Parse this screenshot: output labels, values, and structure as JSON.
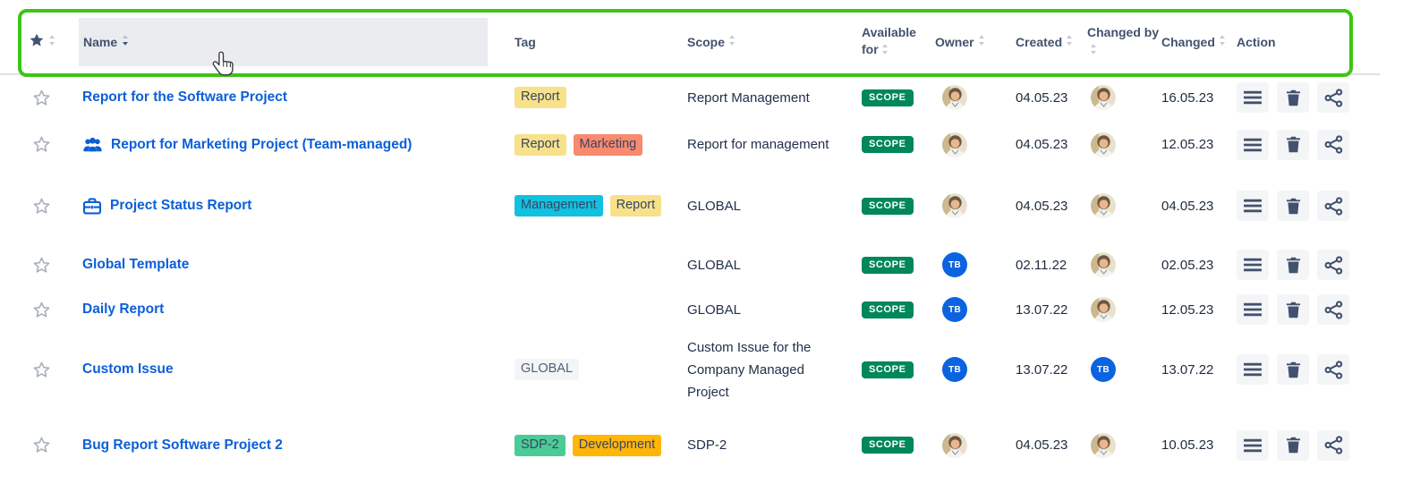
{
  "colors": {
    "annotation_green": "#3EC415",
    "link_blue": "#0B5FD9",
    "header_text": "#42526E",
    "badge_green": "#00875A",
    "tag_text": "#374663",
    "avatar_blue": "#0B63E0",
    "icon_navy": "#42526E",
    "star_outline": "#A9B0BB",
    "hover_bg": "#EBECF0",
    "divider": "#DFE1E6",
    "btn_bg": "#F4F5F7",
    "date_text": "#1E2B3C",
    "scope_text": "#22304A"
  },
  "annotation": {
    "type": "highlight-rectangle-around-header",
    "cursor": "hand-pointer-over-name-column"
  },
  "header": {
    "columns": [
      {
        "key": "favorite",
        "label": "",
        "icon": "star-filled-icon",
        "sortable": true
      },
      {
        "key": "name",
        "label": "Name",
        "sortable": true,
        "active_sort": "down"
      },
      {
        "key": "tag",
        "label": "Tag",
        "sortable": false
      },
      {
        "key": "scope",
        "label": "Scope",
        "sortable": true
      },
      {
        "key": "available_for",
        "label": "Available for",
        "sortable": true
      },
      {
        "key": "owner",
        "label": "Owner",
        "sortable": true
      },
      {
        "key": "created",
        "label": "Created",
        "sortable": true
      },
      {
        "key": "changed_by",
        "label": "Changed by",
        "sortable": true
      },
      {
        "key": "changed",
        "label": "Changed",
        "sortable": true
      },
      {
        "key": "action",
        "label": "Action",
        "sortable": false
      }
    ]
  },
  "actions": [
    {
      "name": "menu-button",
      "icon": "menu-icon",
      "label": "Menu"
    },
    {
      "name": "delete-button",
      "icon": "trash-icon",
      "label": "Delete"
    },
    {
      "name": "share-button",
      "icon": "share-icon",
      "label": "Share"
    }
  ],
  "rows": [
    {
      "name": "Report for the Software Project",
      "icon": null,
      "tags": [
        {
          "label": "Report",
          "bg": "#F7E28B"
        }
      ],
      "scope": "Report Management",
      "available_for": "SCOPE",
      "owner": {
        "type": "photo"
      },
      "created": "04.05.23",
      "changed_by": {
        "type": "photo"
      },
      "changed": "16.05.23"
    },
    {
      "name": "Report for Marketing Project (Team-managed)",
      "icon": "team-icon",
      "tags": [
        {
          "label": "Report",
          "bg": "#F7E28B"
        },
        {
          "label": "Marketing",
          "bg": "#F9896F"
        }
      ],
      "scope": "Report for management",
      "available_for": "SCOPE",
      "owner": {
        "type": "photo"
      },
      "created": "04.05.23",
      "changed_by": {
        "type": "photo"
      },
      "changed": "12.05.23"
    },
    {
      "name": "Project Status Report",
      "icon": "briefcase-icon",
      "tags": [
        {
          "label": "Management",
          "bg": "#12C1E0"
        },
        {
          "label": "Report",
          "bg": "#F7E28B"
        }
      ],
      "scope": "GLOBAL",
      "available_for": "SCOPE",
      "owner": {
        "type": "photo"
      },
      "created": "04.05.23",
      "changed_by": {
        "type": "photo"
      },
      "changed": "04.05.23"
    },
    {
      "name": "Global Template",
      "icon": null,
      "tags": [],
      "scope": "GLOBAL",
      "available_for": "SCOPE",
      "owner": {
        "type": "initials",
        "text": "TB"
      },
      "created": "02.11.22",
      "changed_by": {
        "type": "photo"
      },
      "changed": "02.05.23"
    },
    {
      "name": "Daily Report",
      "icon": null,
      "tags": [],
      "scope": "GLOBAL",
      "available_for": "SCOPE",
      "owner": {
        "type": "initials",
        "text": "TB"
      },
      "created": "13.07.22",
      "changed_by": {
        "type": "photo"
      },
      "changed": "12.05.23"
    },
    {
      "name": "Custom Issue",
      "icon": null,
      "tags": [
        {
          "label": "GLOBAL",
          "bg": "#F4F5F7",
          "color": "#505F79"
        }
      ],
      "scope": "Custom Issue for the Company Managed Project",
      "available_for": "SCOPE",
      "owner": {
        "type": "initials",
        "text": "TB"
      },
      "created": "13.07.22",
      "changed_by": {
        "type": "initials",
        "text": "TB"
      },
      "changed": "13.07.22"
    },
    {
      "name": "Bug Report Software Project 2",
      "icon": null,
      "tags": [
        {
          "label": "SDP-2",
          "bg": "#4CCB97"
        },
        {
          "label": "Development",
          "bg": "#FFB608"
        }
      ],
      "scope": "SDP-2",
      "available_for": "SCOPE",
      "owner": {
        "type": "photo"
      },
      "created": "04.05.23",
      "changed_by": {
        "type": "photo"
      },
      "changed": "10.05.23"
    }
  ]
}
